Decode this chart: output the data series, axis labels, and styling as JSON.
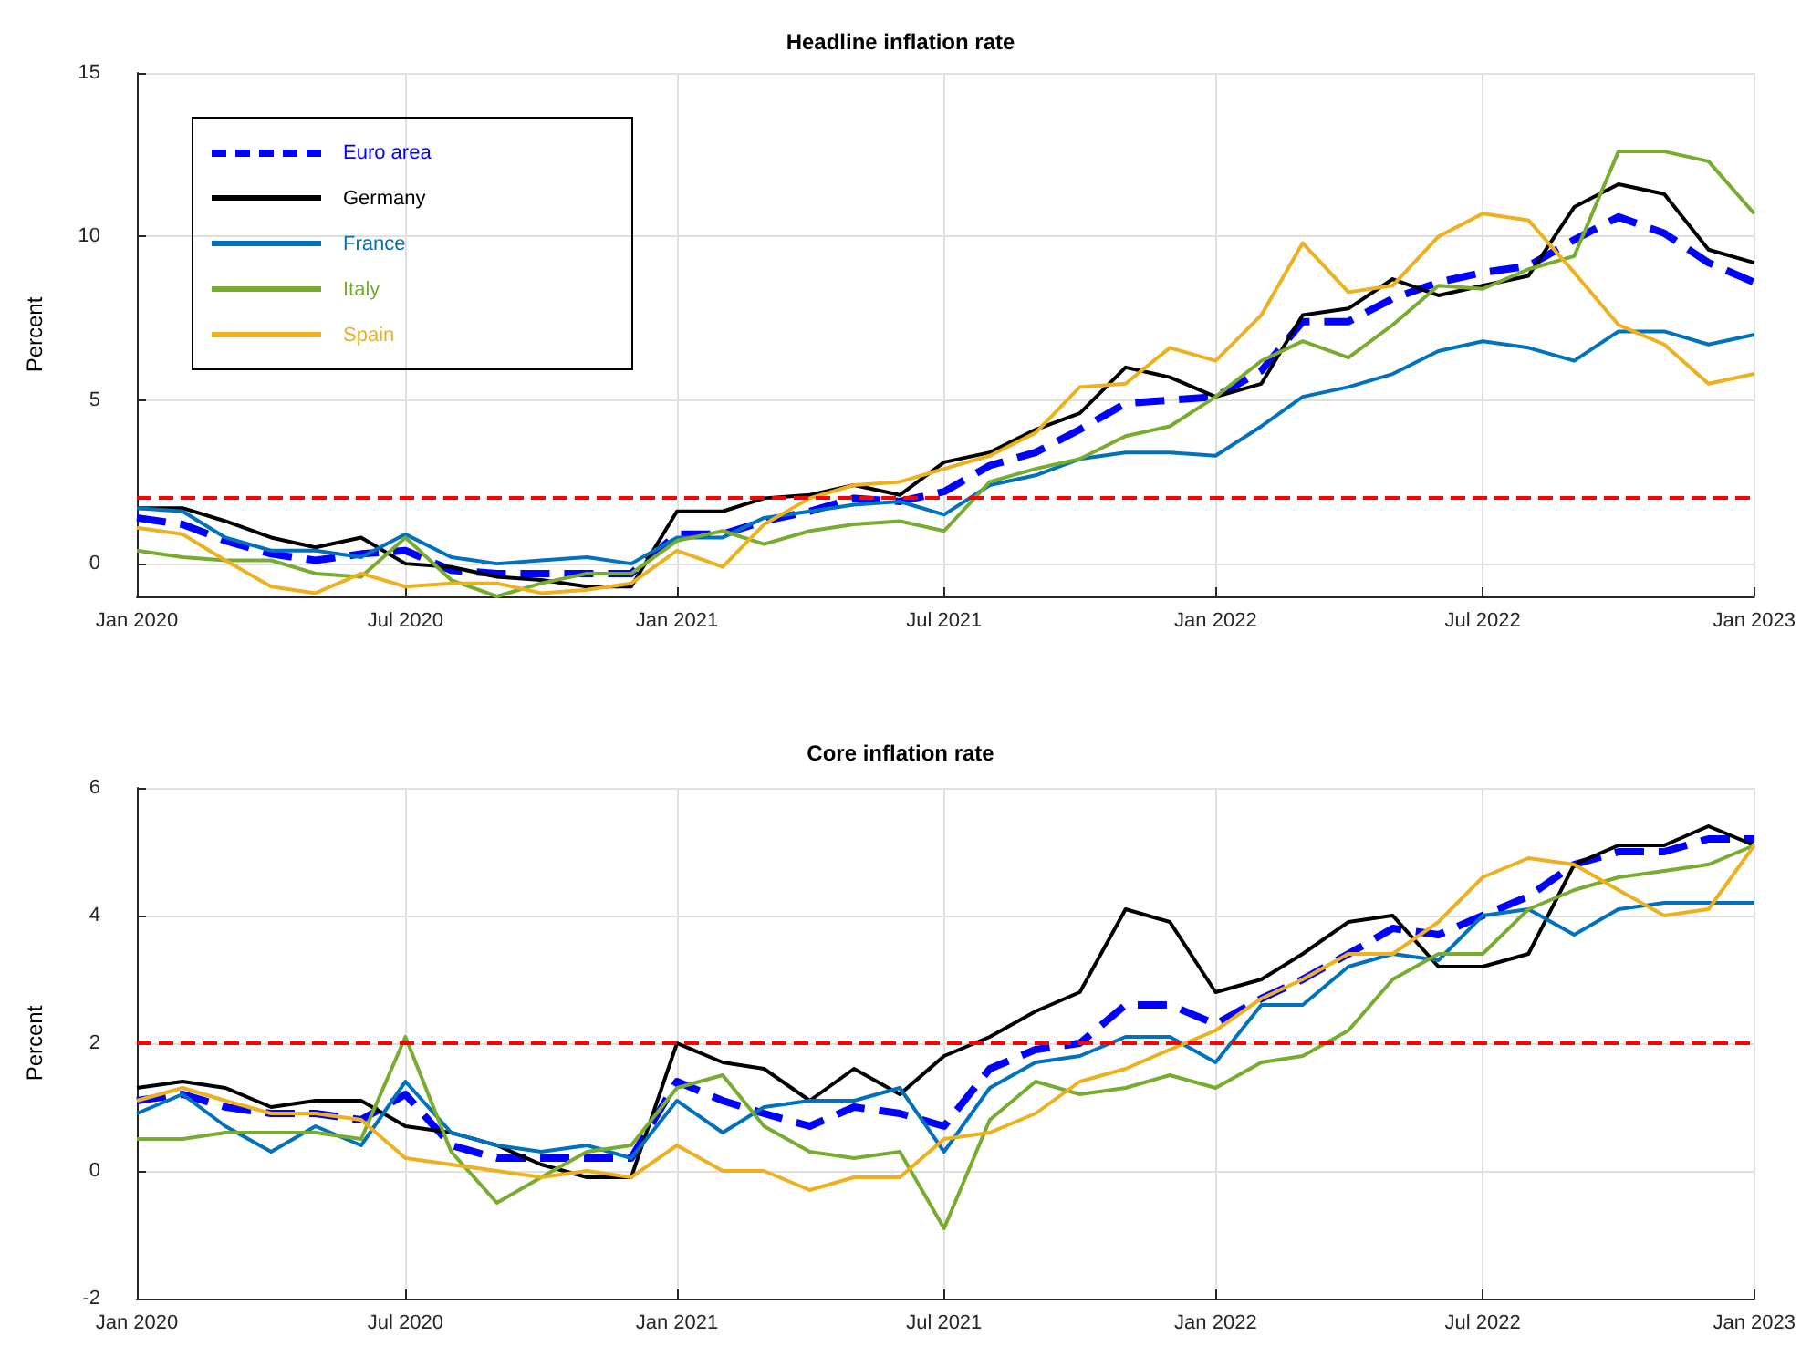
{
  "chart_data": [
    {
      "type": "line",
      "title": "Headline inflation rate",
      "ylabel": "Percent",
      "x": [
        "2020-01",
        "2020-02",
        "2020-03",
        "2020-04",
        "2020-05",
        "2020-06",
        "2020-07",
        "2020-08",
        "2020-09",
        "2020-10",
        "2020-11",
        "2020-12",
        "2021-01",
        "2021-02",
        "2021-03",
        "2021-04",
        "2021-05",
        "2021-06",
        "2021-07",
        "2021-08",
        "2021-09",
        "2021-10",
        "2021-11",
        "2021-12",
        "2022-01",
        "2022-02",
        "2022-03",
        "2022-04",
        "2022-05",
        "2022-06",
        "2022-07",
        "2022-08",
        "2022-09",
        "2022-10",
        "2022-11",
        "2022-12",
        "2023-01"
      ],
      "series": [
        {
          "name": "Euro area",
          "color": "#0000ff",
          "line_style": "dashed",
          "values": [
            1.4,
            1.2,
            0.7,
            0.3,
            0.1,
            0.3,
            0.4,
            -0.2,
            -0.3,
            -0.3,
            -0.3,
            -0.3,
            0.9,
            0.9,
            1.3,
            1.6,
            2.0,
            1.9,
            2.2,
            3.0,
            3.4,
            4.1,
            4.9,
            5.0,
            5.1,
            5.9,
            7.4,
            7.4,
            8.1,
            8.6,
            8.9,
            9.1,
            9.9,
            10.6,
            10.1,
            9.2,
            8.6
          ]
        },
        {
          "name": "Germany",
          "color": "#000000",
          "line_style": "solid",
          "values": [
            1.7,
            1.7,
            1.3,
            0.8,
            0.5,
            0.8,
            0.0,
            -0.1,
            -0.4,
            -0.5,
            -0.7,
            -0.7,
            1.6,
            1.6,
            2.0,
            2.1,
            2.4,
            2.1,
            3.1,
            3.4,
            4.1,
            4.6,
            6.0,
            5.7,
            5.1,
            5.5,
            7.6,
            7.8,
            8.7,
            8.2,
            8.5,
            8.8,
            10.9,
            11.6,
            11.3,
            9.6,
            9.2
          ]
        },
        {
          "name": "France",
          "color": "#0072bd",
          "line_style": "solid",
          "values": [
            1.7,
            1.6,
            0.8,
            0.4,
            0.4,
            0.2,
            0.9,
            0.2,
            0.0,
            0.1,
            0.2,
            0.0,
            0.8,
            0.8,
            1.4,
            1.6,
            1.8,
            1.9,
            1.5,
            2.4,
            2.7,
            3.2,
            3.4,
            3.4,
            3.3,
            4.2,
            5.1,
            5.4,
            5.8,
            6.5,
            6.8,
            6.6,
            6.2,
            7.1,
            7.1,
            6.7,
            7.0
          ]
        },
        {
          "name": "Italy",
          "color": "#77ac30",
          "line_style": "solid",
          "values": [
            0.4,
            0.2,
            0.1,
            0.1,
            -0.3,
            -0.4,
            0.8,
            -0.5,
            -1.0,
            -0.6,
            -0.3,
            -0.3,
            0.7,
            1.0,
            0.6,
            1.0,
            1.2,
            1.3,
            1.0,
            2.5,
            2.9,
            3.2,
            3.9,
            4.2,
            5.1,
            6.2,
            6.8,
            6.3,
            7.3,
            8.5,
            8.4,
            9.0,
            9.4,
            12.6,
            12.6,
            12.3,
            10.7
          ]
        },
        {
          "name": "Spain",
          "color": "#edb120",
          "line_style": "solid",
          "values": [
            1.1,
            0.9,
            0.1,
            -0.7,
            -0.9,
            -0.3,
            -0.7,
            -0.6,
            -0.6,
            -0.9,
            -0.8,
            -0.6,
            0.4,
            -0.1,
            1.2,
            2.0,
            2.4,
            2.5,
            2.9,
            3.3,
            4.0,
            5.4,
            5.5,
            6.6,
            6.2,
            7.6,
            9.8,
            8.3,
            8.5,
            10.0,
            10.7,
            10.5,
            8.9,
            7.3,
            6.7,
            5.5,
            5.8
          ]
        }
      ],
      "xlim": [
        "2020-01",
        "2023-01"
      ],
      "xticks": [
        {
          "value": "2020-01",
          "label": "Jan 2020"
        },
        {
          "value": "2020-07",
          "label": "Jul 2020"
        },
        {
          "value": "2021-01",
          "label": "Jan 2021"
        },
        {
          "value": "2021-07",
          "label": "Jul 2021"
        },
        {
          "value": "2022-01",
          "label": "Jan 2022"
        },
        {
          "value": "2022-07",
          "label": "Jul 2022"
        },
        {
          "value": "2023-01",
          "label": "Jan 2023"
        }
      ],
      "ylim": [
        -1,
        15
      ],
      "yticks": [
        0,
        5,
        10,
        15
      ],
      "ref_lines": [
        {
          "axis": "y",
          "value": 2,
          "color": "#ff0000",
          "line_style": "dashed"
        }
      ],
      "grid": true,
      "legend": "top left",
      "marker": "none"
    },
    {
      "type": "line",
      "title": "Core inflation rate",
      "ylabel": "Percent",
      "x": [
        "2020-01",
        "2020-02",
        "2020-03",
        "2020-04",
        "2020-05",
        "2020-06",
        "2020-07",
        "2020-08",
        "2020-09",
        "2020-10",
        "2020-11",
        "2020-12",
        "2021-01",
        "2021-02",
        "2021-03",
        "2021-04",
        "2021-05",
        "2021-06",
        "2021-07",
        "2021-08",
        "2021-09",
        "2021-10",
        "2021-11",
        "2021-12",
        "2022-01",
        "2022-02",
        "2022-03",
        "2022-04",
        "2022-05",
        "2022-06",
        "2022-07",
        "2022-08",
        "2022-09",
        "2022-10",
        "2022-11",
        "2022-12",
        "2023-01"
      ],
      "series": [
        {
          "color": "#0000ff",
          "line_style": "dashed",
          "values": [
            1.1,
            1.2,
            1.0,
            0.9,
            0.9,
            0.8,
            1.2,
            0.4,
            0.2,
            0.2,
            0.2,
            0.2,
            1.4,
            1.1,
            0.9,
            0.7,
            1.0,
            0.9,
            0.7,
            1.6,
            1.9,
            2.0,
            2.6,
            2.6,
            2.3,
            2.7,
            3.0,
            3.4,
            3.8,
            3.7,
            4.0,
            4.3,
            4.8,
            5.0,
            5.0,
            5.2,
            5.2
          ]
        },
        {
          "color": "#000000",
          "line_style": "solid",
          "values": [
            1.3,
            1.4,
            1.3,
            1.0,
            1.1,
            1.1,
            0.7,
            0.6,
            0.4,
            0.1,
            -0.1,
            -0.1,
            2.0,
            1.7,
            1.6,
            1.1,
            1.6,
            1.2,
            1.8,
            2.1,
            2.5,
            2.8,
            4.1,
            3.9,
            2.8,
            3.0,
            3.4,
            3.9,
            4.0,
            3.2,
            3.2,
            3.4,
            4.8,
            5.1,
            5.1,
            5.4,
            5.1
          ]
        },
        {
          "color": "#0072bd",
          "line_style": "solid",
          "values": [
            0.9,
            1.2,
            0.7,
            0.3,
            0.7,
            0.4,
            1.4,
            0.6,
            0.4,
            0.3,
            0.4,
            0.2,
            1.1,
            0.6,
            1.0,
            1.1,
            1.1,
            1.3,
            0.3,
            1.3,
            1.7,
            1.8,
            2.1,
            2.1,
            1.7,
            2.6,
            2.6,
            3.2,
            3.4,
            3.3,
            4.0,
            4.1,
            3.7,
            4.1,
            4.2,
            4.2,
            4.2
          ]
        },
        {
          "color": "#77ac30",
          "line_style": "solid",
          "values": [
            0.5,
            0.5,
            0.6,
            0.6,
            0.6,
            0.5,
            2.1,
            0.3,
            -0.5,
            -0.1,
            0.3,
            0.4,
            1.3,
            1.5,
            0.7,
            0.3,
            0.2,
            0.3,
            -0.9,
            0.8,
            1.4,
            1.2,
            1.3,
            1.5,
            1.3,
            1.7,
            1.8,
            2.2,
            3.0,
            3.4,
            3.4,
            4.1,
            4.4,
            4.6,
            4.7,
            4.8,
            5.1
          ]
        },
        {
          "color": "#edb120",
          "line_style": "solid",
          "values": [
            1.1,
            1.3,
            1.1,
            0.9,
            0.9,
            0.8,
            0.2,
            0.1,
            0.0,
            -0.1,
            0.0,
            -0.1,
            0.4,
            0.0,
            0.0,
            -0.3,
            -0.1,
            -0.1,
            0.5,
            0.6,
            0.9,
            1.4,
            1.6,
            1.9,
            2.2,
            2.7,
            3.0,
            3.4,
            3.4,
            3.9,
            4.6,
            4.9,
            4.8,
            4.4,
            4.0,
            4.1,
            5.1
          ]
        }
      ],
      "xlim": [
        "2020-01",
        "2023-01"
      ],
      "xticks": [
        {
          "value": "2020-01",
          "label": "Jan 2020"
        },
        {
          "value": "2020-07",
          "label": "Jul 2020"
        },
        {
          "value": "2021-01",
          "label": "Jan 2021"
        },
        {
          "value": "2021-07",
          "label": "Jul 2021"
        },
        {
          "value": "2022-01",
          "label": "Jan 2022"
        },
        {
          "value": "2022-07",
          "label": "Jul 2022"
        },
        {
          "value": "2023-01",
          "label": "Jan 2023"
        }
      ],
      "ylim": [
        -2,
        6
      ],
      "yticks": [
        -2,
        0,
        2,
        4,
        6
      ],
      "ref_lines": [
        {
          "axis": "y",
          "value": 2,
          "color": "#ff0000",
          "line_style": "dashed"
        }
      ],
      "grid": true,
      "marker": "none"
    }
  ]
}
